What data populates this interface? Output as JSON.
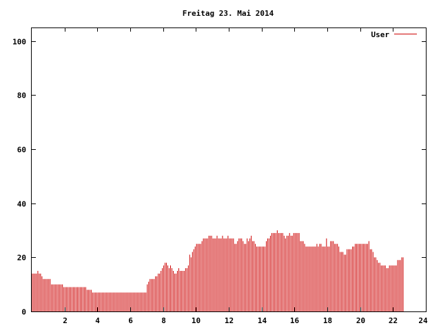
{
  "chart_data": {
    "type": "bar",
    "title": "Freitag 23. Mai 2014",
    "xlabel": "",
    "ylabel": "",
    "xlim": [
      0,
      24
    ],
    "ylim": [
      0,
      105
    ],
    "x_ticks": [
      2,
      4,
      6,
      8,
      10,
      12,
      14,
      16,
      18,
      20,
      22,
      24
    ],
    "y_ticks": [
      0,
      20,
      40,
      60,
      80,
      100
    ],
    "grid": false,
    "legend": "top-right",
    "series": [
      {
        "name": "User",
        "color": "#cc0000",
        "bar_width_hours": 0.0833,
        "values": [
          14,
          14,
          14,
          14,
          15,
          14,
          14,
          13,
          12,
          12,
          12,
          12,
          12,
          12,
          10,
          10,
          10,
          10,
          10,
          10,
          10,
          10,
          10,
          9,
          9,
          9,
          9,
          9,
          9,
          9,
          9,
          9,
          9,
          9,
          9,
          9,
          9,
          9,
          9,
          9,
          8,
          8,
          8,
          8,
          7,
          7,
          7,
          7,
          7,
          7,
          7,
          7,
          7,
          7,
          7,
          7,
          7,
          7,
          7,
          7,
          7,
          7,
          7,
          7,
          7,
          7,
          7,
          7,
          7,
          7,
          7,
          7,
          7,
          7,
          7,
          7,
          7,
          7,
          7,
          7,
          7,
          7,
          7,
          7,
          10,
          11,
          12,
          12,
          12,
          12,
          13,
          13,
          14,
          14,
          15,
          16,
          17,
          18,
          18,
          17,
          16,
          17,
          16,
          15,
          14,
          14,
          15,
          16,
          15,
          15,
          15,
          15,
          16,
          16,
          17,
          21,
          20,
          22,
          23,
          24,
          25,
          25,
          25,
          25,
          26,
          27,
          27,
          27,
          27,
          28,
          28,
          28,
          27,
          27,
          27,
          28,
          27,
          27,
          27,
          28,
          27,
          27,
          27,
          28,
          27,
          27,
          27,
          27,
          25,
          25,
          26,
          27,
          27,
          27,
          26,
          25,
          25,
          27,
          26,
          27,
          28,
          26,
          26,
          25,
          24,
          24,
          24,
          24,
          24,
          24,
          24,
          26,
          27,
          27,
          28,
          29,
          29,
          29,
          29,
          30,
          29,
          29,
          29,
          29,
          28,
          27,
          28,
          28,
          29,
          28,
          28,
          29,
          29,
          29,
          29,
          29,
          26,
          26,
          26,
          25,
          24,
          24,
          24,
          24,
          24,
          24,
          24,
          24,
          25,
          24,
          25,
          25,
          24,
          24,
          24,
          27,
          24,
          24,
          26,
          26,
          26,
          25,
          25,
          25,
          24,
          22,
          22,
          22,
          21,
          21,
          23,
          23,
          23,
          23,
          24,
          24,
          25,
          25,
          25,
          25,
          25,
          25,
          25,
          25,
          25,
          25,
          26,
          23,
          23,
          22,
          20,
          20,
          19,
          18,
          18,
          17,
          17,
          17,
          17,
          16,
          16,
          17,
          17,
          17,
          17,
          17,
          17,
          19,
          19,
          19,
          20,
          20
        ]
      }
    ]
  }
}
